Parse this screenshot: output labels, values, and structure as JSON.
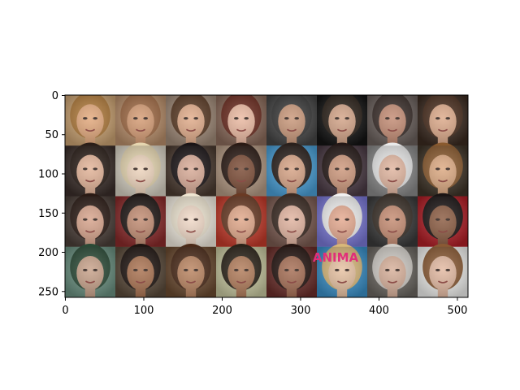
{
  "image_grid": {
    "rows": 4,
    "cols": 8,
    "tiles": [
      {
        "hair": "#b07a3a",
        "skin": "#e2a77a",
        "bg": "#caa272"
      },
      {
        "hair": "#a06a44",
        "skin": "#d49a72",
        "bg": "#b88e6a"
      },
      {
        "hair": "#5a3a24",
        "skin": "#e0aa88",
        "bg": "#a08a78"
      },
      {
        "hair": "#6a2a1e",
        "skin": "#eab8a0",
        "bg": "#8a6a5a"
      },
      {
        "hair": "#3a3a3a",
        "skin": "#c89678",
        "bg": "#454545"
      },
      {
        "hair": "#2a2018",
        "skin": "#d2a286",
        "bg": "#141414"
      },
      {
        "hair": "#3a2e2a",
        "skin": "#c28a72",
        "bg": "#6a605c"
      },
      {
        "hair": "#4a2e1e",
        "skin": "#dca888",
        "bg": "#3a2a20"
      },
      {
        "hair": "#2a1e18",
        "skin": "#e2b296",
        "bg": "#3a2e2a"
      },
      {
        "hair": "#e6d6b0",
        "skin": "#eed4bc",
        "bg": "#d8d2c4"
      },
      {
        "hair": "#1a1416",
        "skin": "#d8aa96",
        "bg": "#4a3a30"
      },
      {
        "hair": "#2a1a14",
        "skin": "#7a4a34",
        "bg": "#b49a84"
      },
      {
        "hair": "#2a201c",
        "skin": "#d6a284",
        "bg": "#4aa0d8"
      },
      {
        "hair": "#241816",
        "skin": "#cc967a",
        "bg": "#4a3a44"
      },
      {
        "hair": "#eaeaea",
        "skin": "#e0b49e",
        "bg": "#8a8a8a"
      },
      {
        "hair": "#8a5a2e",
        "skin": "#dca880",
        "bg": "#3e3428"
      },
      {
        "hair": "#2a1a14",
        "skin": "#d6a28a",
        "bg": "#4a3e38"
      },
      {
        "hair": "#1e1614",
        "skin": "#c08a70",
        "bg": "#8a2a2a"
      },
      {
        "hair": "#efe6d2",
        "skin": "#f0d8c6",
        "bg": "#f2ece0"
      },
      {
        "hair": "#6a3a24",
        "skin": "#e0a688",
        "bg": "#c43a2a"
      },
      {
        "hair": "#3a2a22",
        "skin": "#e0b29e",
        "bg": "#7a5a50"
      },
      {
        "hair": "#f2f2f2",
        "skin": "#e4a88e",
        "bg": "#7a78d6"
      },
      {
        "hair": "#3a3028",
        "skin": "#c48a70",
        "bg": "#3a3a3a"
      },
      {
        "hair": "#1a1414",
        "skin": "#8a5a40",
        "bg": "#b01e26"
      },
      {
        "hair": "#2a4a36",
        "skin": "#c6a088",
        "bg": "#6a9080"
      },
      {
        "hair": "#1e1410",
        "skin": "#a8704e",
        "bg": "#5a4a3a"
      },
      {
        "hair": "#4a2a18",
        "skin": "#b8825e",
        "bg": "#6a4a30"
      },
      {
        "hair": "#2a2218",
        "skin": "#b07a58",
        "bg": "#c8c8a0"
      },
      {
        "hair": "#241410",
        "skin": "#a46c52",
        "bg": "#6a2e2a"
      },
      {
        "hair": "#d8b87a",
        "skin": "#e6c0a0",
        "bg": "#3a90c8"
      },
      {
        "hair": "#d0ccc6",
        "skin": "#d6ae98",
        "bg": "#6a6660"
      },
      {
        "hair": "#8a5a34",
        "skin": "#e2b8a0",
        "bg": "#f0f0ee"
      }
    ]
  },
  "axes": {
    "x_ticks": [
      0,
      100,
      200,
      300,
      400,
      500
    ],
    "y_ticks": [
      0,
      50,
      100,
      150,
      200,
      250
    ],
    "x_range": [
      -0.5,
      513.5
    ],
    "y_range": [
      257.5,
      -0.5
    ],
    "image_width": 514,
    "image_height": 258
  },
  "magazine_text": "ANIMA"
}
